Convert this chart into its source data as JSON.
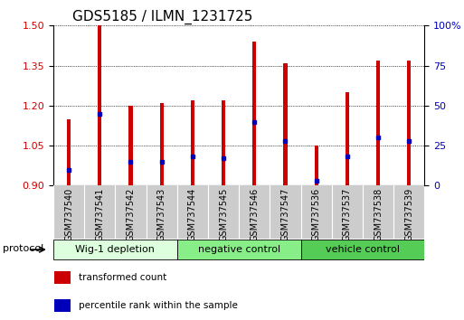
{
  "title": "GDS5185 / ILMN_1231725",
  "samples": [
    "GSM737540",
    "GSM737541",
    "GSM737542",
    "GSM737543",
    "GSM737544",
    "GSM737545",
    "GSM737546",
    "GSM737547",
    "GSM737536",
    "GSM737537",
    "GSM737538",
    "GSM737539"
  ],
  "transformed_counts": [
    1.15,
    1.5,
    1.2,
    1.21,
    1.22,
    1.22,
    1.44,
    1.36,
    1.05,
    1.25,
    1.37,
    1.37
  ],
  "percentile_ranks": [
    10,
    45,
    15,
    15,
    18,
    17,
    40,
    28,
    3,
    18,
    30,
    28
  ],
  "ylim_left": [
    0.9,
    1.5
  ],
  "ylim_right": [
    0,
    100
  ],
  "yticks_left": [
    0.9,
    1.05,
    1.2,
    1.35,
    1.5
  ],
  "yticks_right": [
    0,
    25,
    50,
    75,
    100
  ],
  "bar_color": "#cc0000",
  "dot_color": "#0000bb",
  "bar_bottom": 0.9,
  "groups": [
    {
      "label": "Wig-1 depletion",
      "start": 0,
      "end": 4,
      "color": "#ddffdd"
    },
    {
      "label": "negative control",
      "start": 4,
      "end": 8,
      "color": "#88ee88"
    },
    {
      "label": "vehicle control",
      "start": 8,
      "end": 12,
      "color": "#55cc55"
    }
  ],
  "protocol_label": "protocol",
  "legend_items": [
    {
      "label": "transformed count",
      "color": "#cc0000"
    },
    {
      "label": "percentile rank within the sample",
      "color": "#0000bb"
    }
  ],
  "bg_color": "#ffffff",
  "tick_area_color": "#cccccc",
  "title_fontsize": 11,
  "tick_fontsize": 8,
  "bar_width": 0.12,
  "group_label_fontsize": 8,
  "sample_fontsize": 7
}
